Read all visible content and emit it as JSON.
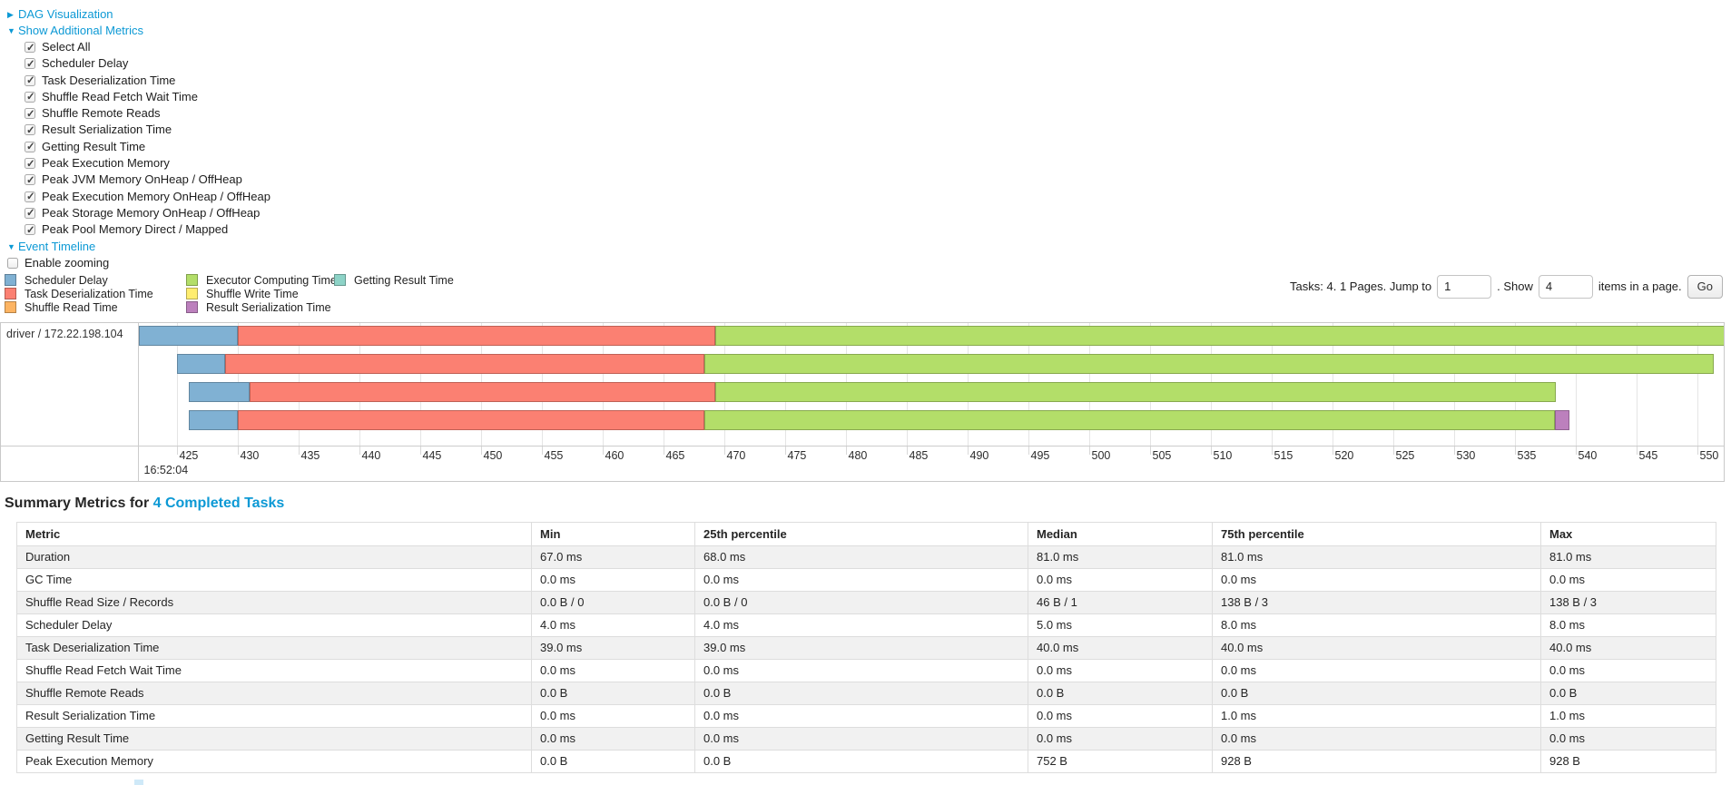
{
  "colors": {
    "link": "#0c99d5",
    "scheduler_delay": "#80B1D3",
    "task_deserialization": "#FB8072",
    "shuffle_read": "#FDB462",
    "executor_computing": "#B3DE69",
    "shuffle_write": "#FFED6F",
    "result_serialization": "#BC80BD",
    "getting_result": "#8DD3C7"
  },
  "toggles": {
    "dag": {
      "arrow": "▶",
      "label": "DAG Visualization"
    },
    "metrics": {
      "arrow": "▼",
      "label": "Show Additional Metrics"
    },
    "event_timeline": {
      "arrow": "▼",
      "label": "Event Timeline"
    }
  },
  "metric_checkboxes": [
    {
      "label": "Select All",
      "checked": true
    },
    {
      "label": "Scheduler Delay",
      "checked": true
    },
    {
      "label": "Task Deserialization Time",
      "checked": true
    },
    {
      "label": "Shuffle Read Fetch Wait Time",
      "checked": true
    },
    {
      "label": "Shuffle Remote Reads",
      "checked": true
    },
    {
      "label": "Result Serialization Time",
      "checked": true
    },
    {
      "label": "Getting Result Time",
      "checked": true
    },
    {
      "label": "Peak Execution Memory",
      "checked": true
    },
    {
      "label": "Peak JVM Memory OnHeap / OffHeap",
      "checked": true
    },
    {
      "label": "Peak Execution Memory OnHeap / OffHeap",
      "checked": true
    },
    {
      "label": "Peak Storage Memory OnHeap / OffHeap",
      "checked": true
    },
    {
      "label": "Peak Pool Memory Direct / Mapped",
      "checked": true
    }
  ],
  "enable_zooming": {
    "label": "Enable zooming",
    "checked": false
  },
  "legend_columns": [
    [
      {
        "metric": "scheduler_delay",
        "label": "Scheduler Delay"
      },
      {
        "metric": "task_deserialization",
        "label": "Task Deserialization Time"
      },
      {
        "metric": "shuffle_read",
        "label": "Shuffle Read Time"
      }
    ],
    [
      {
        "metric": "executor_computing",
        "label": "Executor Computing Time"
      },
      {
        "metric": "shuffle_write",
        "label": "Shuffle Write Time"
      },
      {
        "metric": "result_serialization",
        "label": "Result Serialization Time"
      }
    ],
    [
      {
        "metric": "getting_result",
        "label": "Getting Result Time"
      }
    ]
  ],
  "pagination": {
    "prefix": "Tasks: 4. 1 Pages. Jump to",
    "jump_value": "1",
    "mid": ". Show",
    "show_value": "4",
    "suffix": "items in a page.",
    "go_label": "Go"
  },
  "chart_data": {
    "type": "timeline",
    "row_label": "driver / 172.22.198.104",
    "axis": {
      "min": 421.9,
      "max": 552.2,
      "time_label": "16:52:04",
      "ticks": [
        425,
        430,
        435,
        440,
        445,
        450,
        455,
        460,
        465,
        470,
        475,
        480,
        485,
        490,
        495,
        500,
        505,
        510,
        515,
        520,
        525,
        530,
        535,
        540,
        545,
        550
      ]
    },
    "rows": [
      {
        "task": 1,
        "segments": [
          {
            "metric": "scheduler_delay",
            "start": 421.9,
            "end": 430.0
          },
          {
            "metric": "task_deserialization",
            "start": 430.0,
            "end": 469.3
          },
          {
            "metric": "executor_computing",
            "start": 469.3,
            "end": 552.3
          }
        ]
      },
      {
        "task": 2,
        "segments": [
          {
            "metric": "scheduler_delay",
            "start": 425.0,
            "end": 429.0
          },
          {
            "metric": "task_deserialization",
            "start": 429.0,
            "end": 468.4
          },
          {
            "metric": "executor_computing",
            "start": 468.4,
            "end": 551.4
          }
        ]
      },
      {
        "task": 3,
        "segments": [
          {
            "metric": "scheduler_delay",
            "start": 426.0,
            "end": 431.0
          },
          {
            "metric": "task_deserialization",
            "start": 431.0,
            "end": 469.3
          },
          {
            "metric": "executor_computing",
            "start": 469.3,
            "end": 538.4
          }
        ]
      },
      {
        "task": 4,
        "segments": [
          {
            "metric": "scheduler_delay",
            "start": 426.0,
            "end": 430.0
          },
          {
            "metric": "task_deserialization",
            "start": 430.0,
            "end": 468.4
          },
          {
            "metric": "executor_computing",
            "start": 468.4,
            "end": 538.3
          },
          {
            "metric": "result_serialization",
            "start": 538.3,
            "end": 539.5
          }
        ]
      }
    ]
  },
  "summary": {
    "title_prefix": "Summary Metrics for",
    "title_link": "4 Completed Tasks",
    "headers": [
      "Metric",
      "Min",
      "25th percentile",
      "Median",
      "75th percentile",
      "Max"
    ],
    "rows": [
      {
        "metric": "Duration",
        "values": [
          "67.0 ms",
          "68.0 ms",
          "81.0 ms",
          "81.0 ms",
          "81.0 ms"
        ]
      },
      {
        "metric": "GC Time",
        "values": [
          "0.0 ms",
          "0.0 ms",
          "0.0 ms",
          "0.0 ms",
          "0.0 ms"
        ]
      },
      {
        "metric": "Shuffle Read Size / Records",
        "values": [
          "0.0 B / 0",
          "0.0 B / 0",
          "46 B / 1",
          "138 B / 3",
          "138 B / 3"
        ]
      },
      {
        "metric": "Scheduler Delay",
        "values": [
          "4.0 ms",
          "4.0 ms",
          "5.0 ms",
          "8.0 ms",
          "8.0 ms"
        ]
      },
      {
        "metric": "Task Deserialization Time",
        "values": [
          "39.0 ms",
          "39.0 ms",
          "40.0 ms",
          "40.0 ms",
          "40.0 ms"
        ]
      },
      {
        "metric": "Shuffle Read Fetch Wait Time",
        "values": [
          "0.0 ms",
          "0.0 ms",
          "0.0 ms",
          "0.0 ms",
          "0.0 ms"
        ]
      },
      {
        "metric": "Shuffle Remote Reads",
        "values": [
          "0.0 B",
          "0.0 B",
          "0.0 B",
          "0.0 B",
          "0.0 B"
        ]
      },
      {
        "metric": "Result Serialization Time",
        "values": [
          "0.0 ms",
          "0.0 ms",
          "0.0 ms",
          "1.0 ms",
          "1.0 ms"
        ]
      },
      {
        "metric": "Getting Result Time",
        "values": [
          "0.0 ms",
          "0.0 ms",
          "0.0 ms",
          "0.0 ms",
          "0.0 ms"
        ]
      },
      {
        "metric": "Peak Execution Memory",
        "values": [
          "0.0 B",
          "0.0 B",
          "752 B",
          "928 B",
          "928 B"
        ]
      }
    ]
  }
}
